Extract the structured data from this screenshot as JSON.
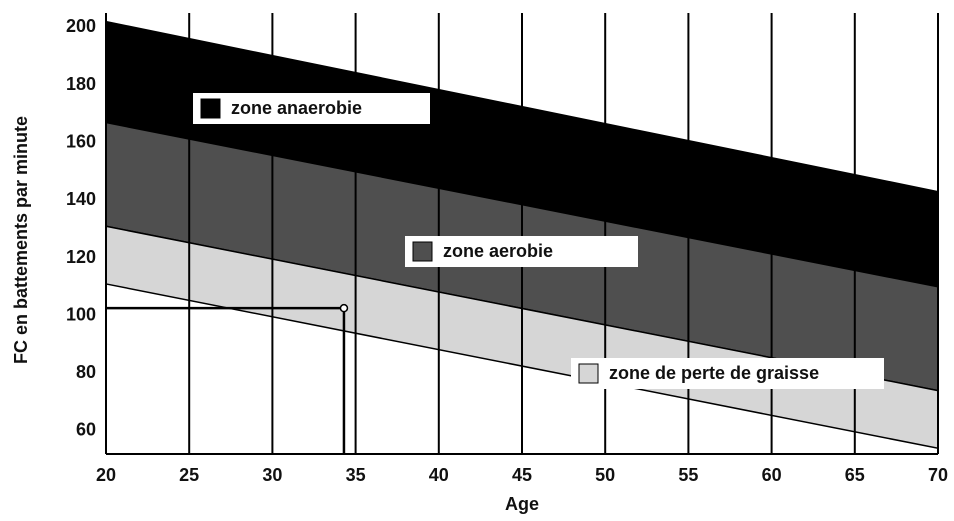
{
  "chart_data": {
    "type": "band",
    "x_label": "Age",
    "y_label": "FC en battements par minute",
    "x": [
      20,
      70
    ],
    "series": [
      {
        "name": "zone anaerobie",
        "color": "#000000",
        "upper": [
          202,
          143
        ],
        "lower": [
          167,
          110
        ]
      },
      {
        "name": "zone aerobie",
        "color": "#4f4f4f",
        "upper": [
          167,
          110
        ],
        "lower": [
          131,
          74
        ]
      },
      {
        "name": "zone de perte de graisse",
        "color": "#d6d6d6",
        "upper": [
          131,
          74
        ],
        "lower": [
          111,
          54
        ]
      }
    ],
    "marker": {
      "x": 34.3,
      "y": 102.6
    },
    "xlim": [
      20,
      70
    ],
    "ylim": [
      52,
      205
    ],
    "xticks": [
      20,
      25,
      30,
      35,
      40,
      45,
      50,
      55,
      60,
      65,
      70
    ],
    "yticks": [
      60,
      80,
      100,
      120,
      140,
      160,
      180,
      200
    ],
    "grid": "x"
  }
}
